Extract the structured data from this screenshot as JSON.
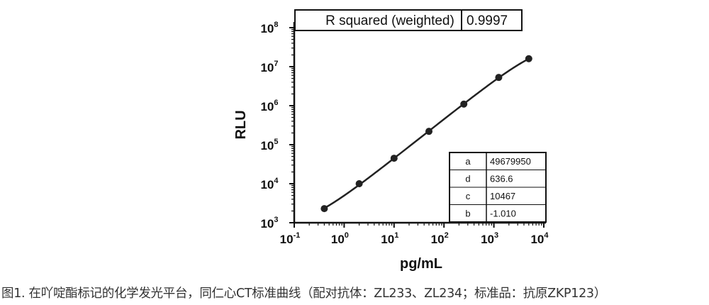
{
  "caption": "图1. 在吖啶酯标记的化学发光平台，同仁心CT标准曲线（配对抗体：ZL233、ZL234；标准品：抗原ZKP123）",
  "chart_data": {
    "type": "scatter",
    "xlabel": "pg/mL",
    "ylabel": "RLU",
    "x_scale": "log",
    "y_scale": "log",
    "xlim": [
      0.1,
      10000
    ],
    "ylim": [
      1000,
      100000000
    ],
    "x_ticks": [
      {
        "base": "10",
        "exp": "-1",
        "value": 0.1
      },
      {
        "base": "10",
        "exp": "0",
        "value": 1
      },
      {
        "base": "10",
        "exp": "1",
        "value": 10
      },
      {
        "base": "10",
        "exp": "2",
        "value": 100
      },
      {
        "base": "10",
        "exp": "3",
        "value": 1000
      },
      {
        "base": "10",
        "exp": "4",
        "value": 10000
      }
    ],
    "y_ticks": [
      {
        "base": "10",
        "exp": "3",
        "value": 1000
      },
      {
        "base": "10",
        "exp": "4",
        "value": 10000
      },
      {
        "base": "10",
        "exp": "5",
        "value": 100000
      },
      {
        "base": "10",
        "exp": "6",
        "value": 1000000
      },
      {
        "base": "10",
        "exp": "7",
        "value": 10000000
      },
      {
        "base": "10",
        "exp": "8",
        "value": 100000000
      }
    ],
    "points": [
      {
        "x": 0.4,
        "y": 2300
      },
      {
        "x": 2,
        "y": 10000
      },
      {
        "x": 10,
        "y": 45000
      },
      {
        "x": 50,
        "y": 220000
      },
      {
        "x": 250,
        "y": 1100000
      },
      {
        "x": 1250,
        "y": 5300000
      },
      {
        "x": 5000,
        "y": 16000000
      }
    ],
    "fit": {
      "model": "4PL",
      "r_squared_label": "R squared (weighted)",
      "r_squared_value": "0.9997",
      "params": [
        {
          "name": "a",
          "value": "49679950"
        },
        {
          "name": "d",
          "value": "636.6"
        },
        {
          "name": "c",
          "value": "10467"
        },
        {
          "name": "b",
          "value": "-1.010"
        }
      ]
    },
    "colors": {
      "points": "#222222",
      "line": "#222222",
      "axis": "#111111"
    },
    "grid": false
  }
}
